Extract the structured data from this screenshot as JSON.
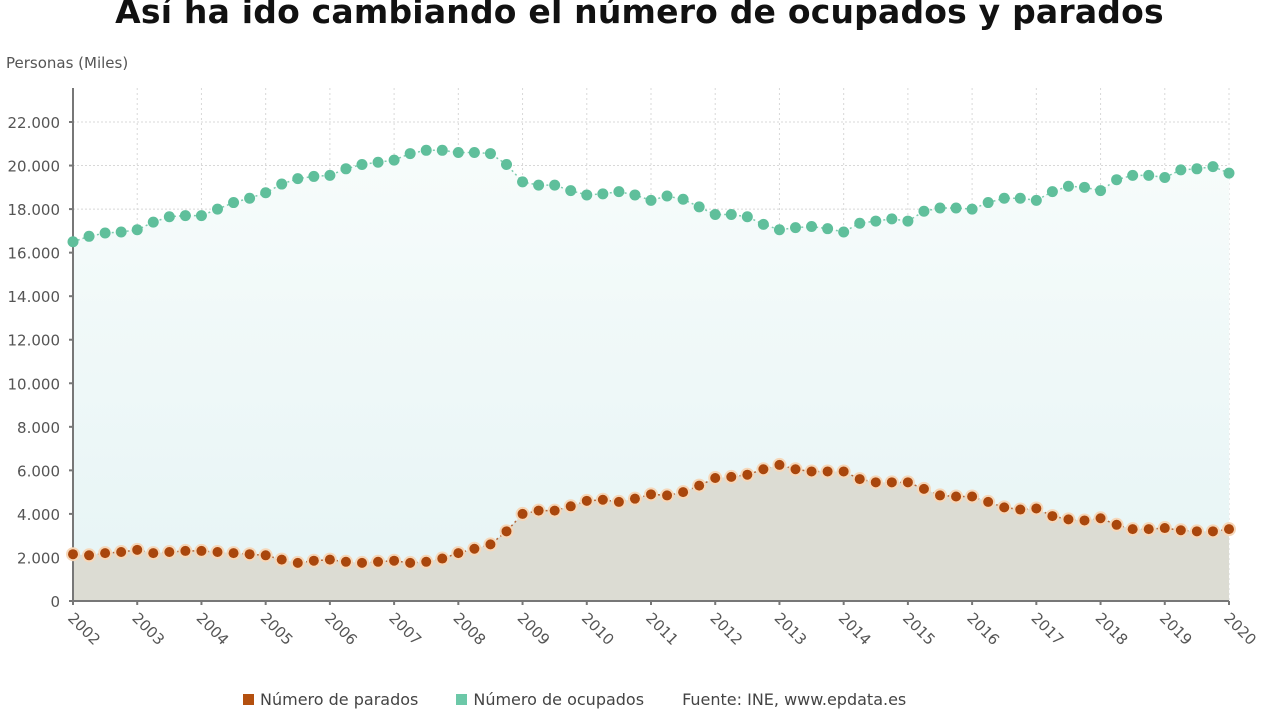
{
  "title": "Así ha ido cambiando el número de ocupados y parados",
  "y_axis_label": "Personas (Miles)",
  "legend": {
    "items": [
      {
        "label": "Número de parados",
        "color": "#b4500f"
      },
      {
        "label": "Número de ocupados",
        "color": "#6cc8a8"
      }
    ],
    "source": "Fuente: INE, www.epdata.es"
  },
  "colors": {
    "parados": "#a9460c",
    "parados_halo": "#f6d7b9",
    "ocupados": "#5fbf9b",
    "ocupados_fill": "#eef8f6",
    "parados_fill": "#dcdcd3",
    "grid": "#d8d8d8",
    "axis": "#777777"
  },
  "chart_data": {
    "type": "line",
    "title": "Así ha ido cambiando el número de ocupados y parados",
    "xlabel": "",
    "ylabel": "Personas (Miles)",
    "ylim": [
      0,
      23000
    ],
    "yticks": [
      0,
      2000,
      4000,
      6000,
      8000,
      10000,
      12000,
      14000,
      16000,
      18000,
      20000,
      22000
    ],
    "ytick_labels": [
      "0",
      "2.000",
      "4.000",
      "6.000",
      "8.000",
      "10.000",
      "12.000",
      "14.000",
      "16.000",
      "18.000",
      "20.000",
      "22.000"
    ],
    "xtick_labels": [
      "2002",
      "2003",
      "2004",
      "2005",
      "2006",
      "2007",
      "2008",
      "2009",
      "2010",
      "2011",
      "2012",
      "2013",
      "2014",
      "2015",
      "2016",
      "2017",
      "2018",
      "2019",
      "2020"
    ],
    "x_frequency": "quarterly, 2002Q1–2020Q1",
    "grid": true,
    "legend_position": "bottom",
    "series": [
      {
        "name": "Número de ocupados",
        "values": [
          16500,
          16750,
          16900,
          16950,
          17050,
          17400,
          17650,
          17700,
          17700,
          18000,
          18300,
          18500,
          18750,
          19150,
          19400,
          19500,
          19550,
          19850,
          20050,
          20150,
          20250,
          20550,
          20700,
          20700,
          20600,
          20600,
          20550,
          20050,
          19250,
          19100,
          19100,
          18850,
          18650,
          18700,
          18800,
          18650,
          18400,
          18600,
          18450,
          18100,
          17750,
          17750,
          17650,
          17300,
          17050,
          17150,
          17200,
          17100,
          16950,
          17350,
          17450,
          17550,
          17450,
          17900,
          18050,
          18050,
          18000,
          18300,
          18500,
          18500,
          18400,
          18800,
          19050,
          19000,
          18850,
          19350,
          19550,
          19550,
          19450,
          19800,
          19850,
          19950,
          19650
        ]
      },
      {
        "name": "Número de parados",
        "values": [
          2150,
          2100,
          2200,
          2250,
          2350,
          2200,
          2250,
          2300,
          2300,
          2250,
          2200,
          2150,
          2100,
          1900,
          1750,
          1850,
          1900,
          1800,
          1750,
          1800,
          1850,
          1750,
          1800,
          1950,
          2200,
          2400,
          2600,
          3200,
          4000,
          4150,
          4150,
          4350,
          4600,
          4650,
          4550,
          4700,
          4900,
          4850,
          5000,
          5300,
          5650,
          5700,
          5800,
          6050,
          6250,
          6050,
          5950,
          5950,
          5950,
          5600,
          5450,
          5450,
          5450,
          5150,
          4850,
          4800,
          4800,
          4550,
          4300,
          4200,
          4250,
          3900,
          3750,
          3700,
          3800,
          3500,
          3300,
          3300,
          3350,
          3250,
          3200,
          3200,
          3300
        ]
      }
    ]
  }
}
